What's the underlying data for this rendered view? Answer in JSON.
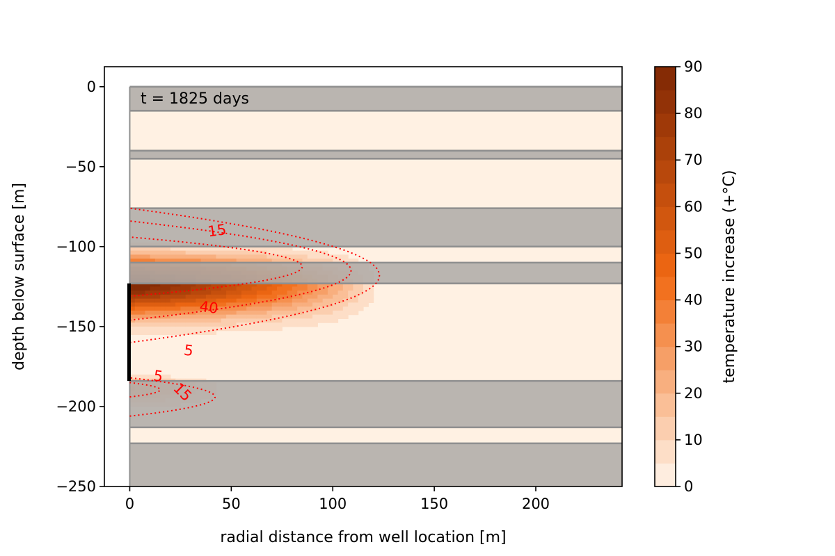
{
  "chart_data": {
    "type": "heatmap",
    "subtype": "filled-contour",
    "annotation": "t = 1825 days",
    "xlabel": "radial distance from well location [m]",
    "ylabel": "depth below surface [m]",
    "xlim": [
      -12.5,
      242.5
    ],
    "ylim": [
      -250,
      12.5
    ],
    "xticks": [
      0,
      50,
      100,
      150,
      200
    ],
    "yticks": [
      0,
      -50,
      -100,
      -150,
      -200,
      -250
    ],
    "xtick_labels": [
      "0",
      "50",
      "100",
      "150",
      "200"
    ],
    "ytick_labels": [
      "0",
      "−50",
      "−100",
      "−150",
      "−200",
      "−250"
    ],
    "domain": {
      "r_min": 0,
      "r_max": 242.5,
      "z_top": 0,
      "z_bottom": -250
    },
    "layers": [
      {
        "type": "aquitard",
        "top": 0,
        "bottom": -15
      },
      {
        "type": "aquifer",
        "top": -15,
        "bottom": -40
      },
      {
        "type": "aquitard",
        "top": -40,
        "bottom": -45
      },
      {
        "type": "aquifer",
        "top": -45,
        "bottom": -76
      },
      {
        "type": "aquitard",
        "top": -76,
        "bottom": -100
      },
      {
        "type": "aquifer",
        "top": -100,
        "bottom": -110
      },
      {
        "type": "aquitard",
        "top": -110,
        "bottom": -123
      },
      {
        "type": "aquifer",
        "top": -123,
        "bottom": -184
      },
      {
        "type": "aquitard",
        "top": -184,
        "bottom": -213
      },
      {
        "type": "aquifer",
        "top": -213,
        "bottom": -223
      },
      {
        "type": "aquitard",
        "top": -223,
        "bottom": -250
      }
    ],
    "well_screen": {
      "r": 0,
      "top": -123,
      "bottom": -184
    },
    "plume": {
      "peak": 90,
      "center_depth": -123,
      "top_sigma": 15,
      "bottom_sigma": 19,
      "radial_reach": 126,
      "radial_power": 1.35
    },
    "lower_plume": {
      "peak": 26,
      "center_depth": -188,
      "top_sigma": 6,
      "bottom_sigma": 10,
      "radial_reach": 50,
      "radial_power": 1.3
    },
    "contour_lines": [
      {
        "level": 5,
        "top": -76,
        "bottom": -160,
        "reach": 123
      },
      {
        "level": 15,
        "top": -84,
        "bottom": -146,
        "reach": 109
      },
      {
        "level": 40,
        "top": -94,
        "bottom": -131,
        "reach": 85
      },
      {
        "level": 5,
        "top": -182,
        "bottom": -206,
        "reach": 42
      },
      {
        "level": 15,
        "top": -185,
        "bottom": -194,
        "reach": 15
      }
    ],
    "contour_labels": [
      {
        "text": "15",
        "x": 43,
        "y": -90,
        "angle": 8
      },
      {
        "text": "40",
        "x": 39,
        "y": -138,
        "angle": -8
      },
      {
        "text": "5",
        "x": 29,
        "y": -165,
        "angle": -8
      },
      {
        "text": "5",
        "x": 14,
        "y": -181,
        "angle": -8
      },
      {
        "text": "15",
        "x": 26,
        "y": -191,
        "angle": -45
      }
    ],
    "colorbar": {
      "label": "temperature increase (+°C)",
      "min": 0,
      "max": 90,
      "step": 5,
      "ticks": [
        0,
        10,
        20,
        30,
        40,
        50,
        60,
        70,
        80,
        90
      ],
      "tick_labels": [
        "0",
        "10",
        "20",
        "30",
        "40",
        "50",
        "60",
        "70",
        "80",
        "90"
      ]
    },
    "colors": {
      "aquitard": "#b0aca8",
      "aquitard_border": "#8f8f8f",
      "aquifer_bg": "#fff1e3",
      "contour_line": "#ff0000",
      "well": "#000000",
      "cmap_low": "#fff5eb",
      "cmap_mid": "#f16913",
      "cmap_high": "#7f2704"
    }
  }
}
